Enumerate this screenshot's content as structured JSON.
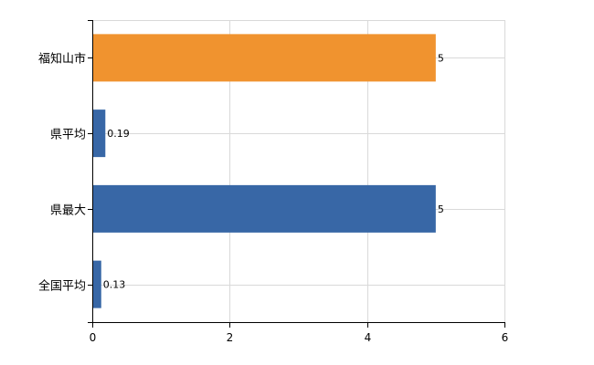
{
  "chart_data": {
    "type": "bar",
    "orientation": "horizontal",
    "categories": [
      "福知山市",
      "県平均",
      "県最大",
      "全国平均"
    ],
    "values": [
      5,
      0.19,
      5,
      0.13
    ],
    "data_labels": [
      "5",
      "0.19",
      "5",
      "0.13"
    ],
    "bar_colors": [
      "#f0932f",
      "#3867a6",
      "#3867a6",
      "#3867a6"
    ],
    "xlim": [
      0,
      6
    ],
    "x_ticks": [
      0,
      2,
      4,
      6
    ],
    "x_tick_labels": [
      "0",
      "2",
      "4",
      "6"
    ],
    "grid": true,
    "legend": "none",
    "title": "",
    "xlabel": "",
    "ylabel": ""
  }
}
